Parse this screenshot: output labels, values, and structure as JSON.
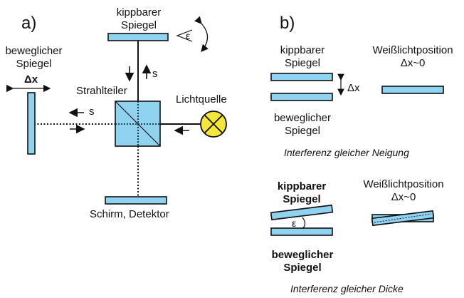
{
  "panel_a": {
    "letter": "a)",
    "tilt_mirror": [
      "kippbarer",
      "Spiegel"
    ],
    "epsilon": "ε",
    "movable_mirror": [
      "beweglicher",
      "Spiegel"
    ],
    "delta_x": "Δx",
    "beamsplitter": "Strahlteiler",
    "light_source": "Lichtquelle",
    "s_vertical": "s",
    "s_horizontal": "s",
    "screen": "Schirm, Detektor"
  },
  "panel_b": {
    "letter": "b)",
    "top": {
      "tilt_mirror": [
        "kippbarer",
        "Spiegel"
      ],
      "delta_x": "Δx",
      "movable_mirror": [
        "beweglicher",
        "Spiegel"
      ],
      "white_light": [
        "Weißlichtposition",
        "Δx~0"
      ],
      "caption": "Interferenz gleicher Neigung"
    },
    "bottom": {
      "tilt_mirror": [
        "kippbarer",
        "Spiegel"
      ],
      "epsilon": "ε",
      "movable_mirror": [
        "beweglicher",
        "Spiegel"
      ],
      "white_light": [
        "Weißlichtposition",
        "Δx~0"
      ],
      "caption": "Interferenz gleicher Dicke"
    }
  },
  "colors": {
    "mirror_fill": "#8fd3f0",
    "lamp_fill": "#f5e63a",
    "stroke": "#111111"
  }
}
